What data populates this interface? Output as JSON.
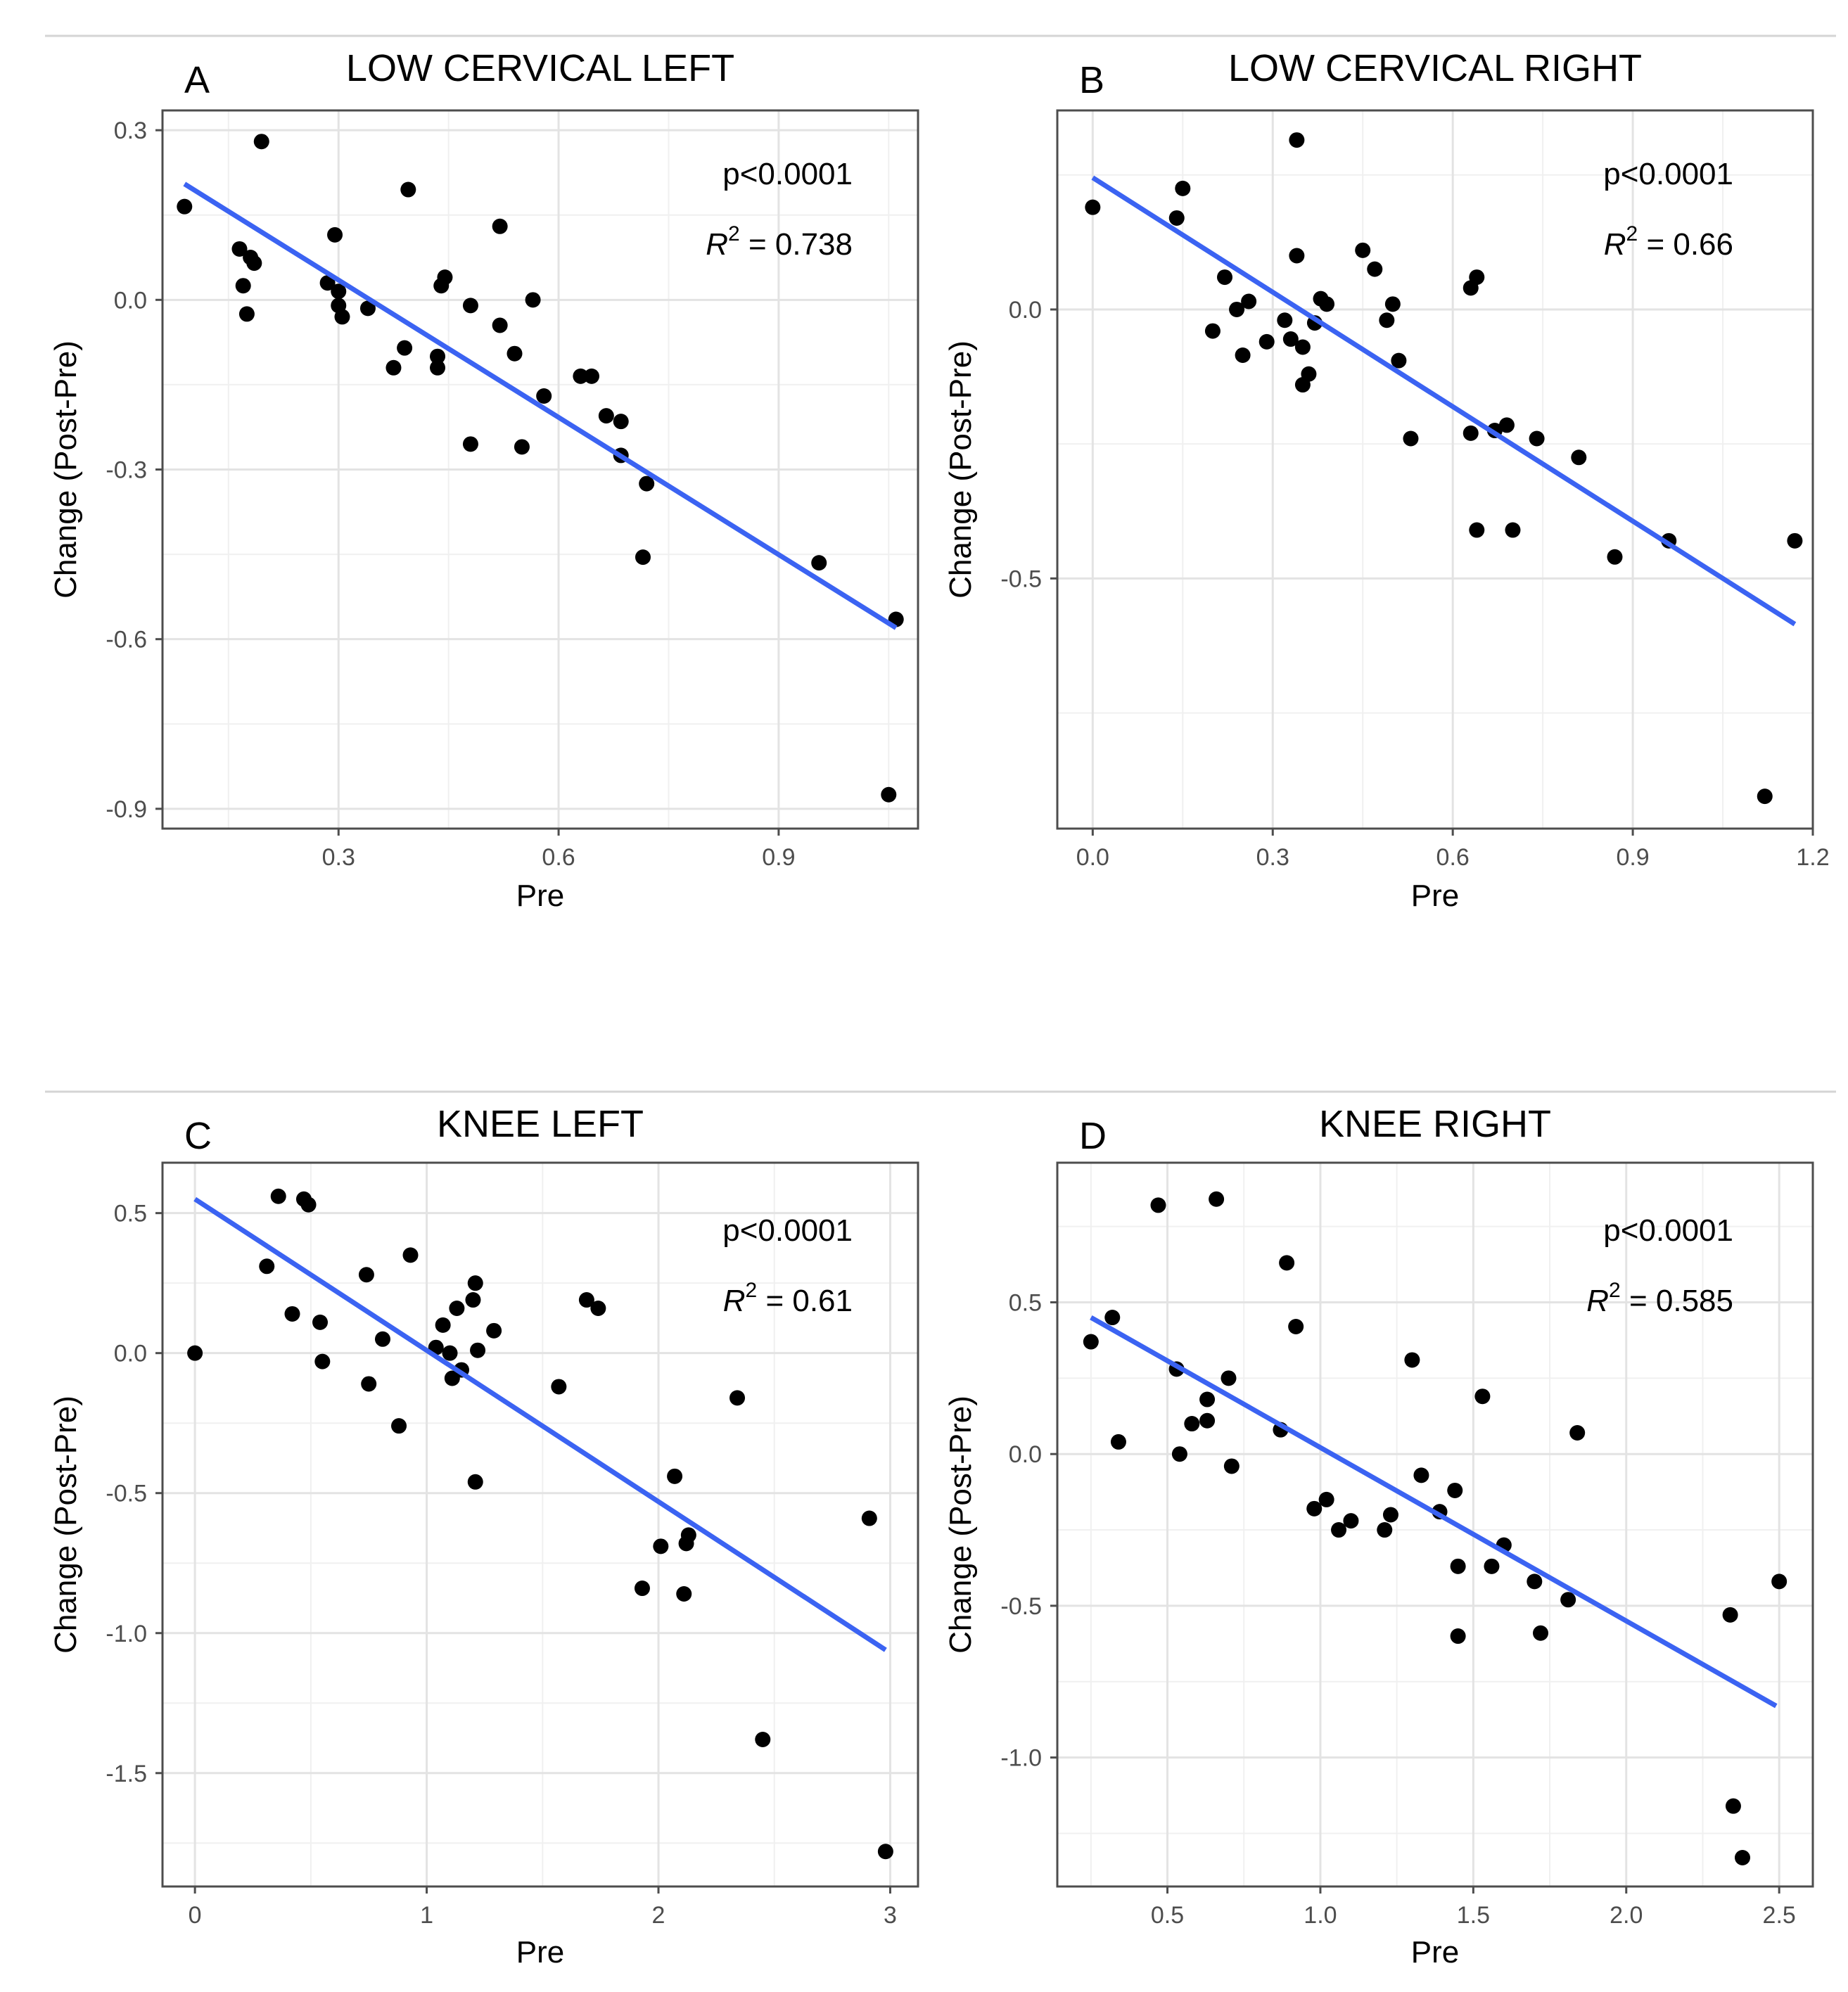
{
  "figure": {
    "type": "multi-panel scatter with fitted regression lines"
  },
  "chart_data": [
    {
      "type": "scatter",
      "panel_letter": "A",
      "title": "LOW CERVICAL LEFT",
      "xlabel": "Pre",
      "ylabel": "Change (Post-Pre)",
      "p_text": "p<0.0001",
      "r2_prefix": "R",
      "r2_sup": "2",
      "r2_value": " = 0.738",
      "xlim": [
        0.06,
        1.09
      ],
      "ylim": [
        -0.935,
        0.335
      ],
      "xticks": [
        0.3,
        0.6,
        0.9
      ],
      "yticks": [
        0.3,
        0.0,
        -0.3,
        -0.6,
        -0.9
      ],
      "xtick_labels": [
        "0.3",
        "0.6",
        "0.9"
      ],
      "ytick_labels": [
        "0.3",
        "0.0",
        "-0.3",
        "-0.6",
        "-0.9"
      ],
      "fit": {
        "x": [
          0.09,
          1.06
        ],
        "y": [
          0.205,
          -0.58
        ],
        "color": "#3b63f2"
      },
      "x": [
        0.09,
        0.165,
        0.17,
        0.175,
        0.18,
        0.185,
        0.195,
        0.285,
        0.295,
        0.3,
        0.3,
        0.305,
        0.34,
        0.375,
        0.39,
        0.395,
        0.435,
        0.435,
        0.44,
        0.445,
        0.48,
        0.48,
        0.52,
        0.52,
        0.54,
        0.55,
        0.565,
        0.58,
        0.63,
        0.645,
        0.665,
        0.685,
        0.685,
        0.715,
        0.72,
        0.955,
        1.05,
        1.06
      ],
      "y": [
        0.165,
        0.09,
        0.025,
        -0.025,
        0.075,
        0.065,
        0.28,
        0.03,
        0.115,
        -0.01,
        0.015,
        -0.03,
        -0.015,
        -0.12,
        -0.085,
        0.195,
        -0.1,
        -0.12,
        0.025,
        0.04,
        -0.01,
        -0.255,
        -0.045,
        0.13,
        -0.095,
        -0.26,
        0.0,
        -0.17,
        -0.135,
        -0.135,
        -0.205,
        -0.215,
        -0.275,
        -0.455,
        -0.325,
        -0.465,
        -0.875,
        -0.565
      ]
    },
    {
      "type": "scatter",
      "panel_letter": "B",
      "title": "LOW CERVICAL RIGHT",
      "xlabel": "Pre",
      "ylabel": "Change (Post-Pre)",
      "p_text": "p<0.0001",
      "r2_prefix": "R",
      "r2_sup": "2",
      "r2_value": " = 0.66",
      "xlim": [
        -0.059,
        1.2
      ],
      "ylim": [
        -0.965,
        0.37
      ],
      "xticks": [
        0.0,
        0.3,
        0.6,
        0.9,
        1.2
      ],
      "yticks": [
        0.0,
        -0.5
      ],
      "xtick_labels": [
        "0.0",
        "0.3",
        "0.6",
        "0.9",
        "1.2"
      ],
      "ytick_labels": [
        "0.0",
        "-0.5"
      ],
      "fit": {
        "x": [
          0.0,
          1.17
        ],
        "y": [
          0.245,
          -0.585
        ],
        "color": "#3b63f2"
      },
      "x": [
        0.0,
        0.14,
        0.15,
        0.22,
        0.2,
        0.24,
        0.25,
        0.26,
        0.29,
        0.32,
        0.33,
        0.34,
        0.34,
        0.35,
        0.35,
        0.36,
        0.37,
        0.38,
        0.39,
        0.45,
        0.47,
        0.49,
        0.5,
        0.51,
        0.53,
        0.63,
        0.63,
        0.64,
        0.64,
        0.67,
        0.69,
        0.7,
        0.74,
        0.81,
        0.87,
        0.96,
        1.12,
        1.17
      ],
      "y": [
        0.19,
        0.17,
        0.225,
        0.06,
        -0.04,
        0.0,
        -0.085,
        0.015,
        -0.06,
        -0.02,
        -0.055,
        0.1,
        0.315,
        -0.07,
        -0.14,
        -0.12,
        -0.025,
        0.02,
        0.01,
        0.11,
        0.075,
        -0.02,
        0.01,
        -0.095,
        -0.24,
        0.04,
        -0.23,
        -0.41,
        0.06,
        -0.225,
        -0.215,
        -0.41,
        -0.24,
        -0.275,
        -0.46,
        -0.43,
        -0.905,
        -0.43
      ]
    },
    {
      "type": "scatter",
      "panel_letter": "C",
      "title": "KNEE LEFT",
      "xlabel": "Pre",
      "ylabel": "Change (Post-Pre)",
      "p_text": "p<0.0001",
      "r2_prefix": "R",
      "r2_sup": "2",
      "r2_value": " = 0.61",
      "xlim": [
        -0.14,
        3.12
      ],
      "ylim": [
        -1.905,
        0.68
      ],
      "xticks": [
        0,
        1,
        2,
        3
      ],
      "yticks": [
        0.5,
        0.0,
        -0.5,
        -1.0,
        -1.5
      ],
      "xtick_labels": [
        "0",
        "1",
        "2",
        "3"
      ],
      "ytick_labels": [
        "0.5",
        "0.0",
        "-0.5",
        "-1.0",
        "-1.5"
      ],
      "fit": {
        "x": [
          0.0,
          2.98
        ],
        "y": [
          0.55,
          -1.06
        ],
        "color": "#3b63f2"
      },
      "x": [
        0.0,
        0.31,
        0.36,
        0.42,
        0.47,
        0.49,
        0.54,
        0.55,
        0.74,
        0.75,
        0.81,
        0.88,
        0.93,
        1.04,
        1.07,
        1.1,
        1.11,
        1.13,
        1.15,
        1.2,
        1.21,
        1.21,
        1.22,
        1.29,
        1.57,
        1.69,
        1.74,
        1.93,
        2.01,
        2.07,
        2.11,
        2.12,
        2.13,
        2.34,
        2.45,
        2.91,
        2.98
      ],
      "y": [
        0.0,
        0.31,
        0.56,
        0.14,
        0.55,
        0.53,
        0.11,
        -0.03,
        0.28,
        -0.11,
        0.05,
        -0.26,
        0.35,
        0.02,
        0.1,
        0.0,
        -0.09,
        0.16,
        -0.06,
        0.19,
        0.25,
        -0.46,
        0.01,
        0.08,
        -0.12,
        0.19,
        0.16,
        -0.84,
        -0.69,
        -0.44,
        -0.86,
        -0.68,
        -0.65,
        -0.16,
        -1.38,
        -0.59,
        -1.78
      ]
    },
    {
      "type": "scatter",
      "panel_letter": "D",
      "title": "KNEE RIGHT",
      "xlabel": "Pre",
      "ylabel": "Change (Post-Pre)",
      "p_text": "p<0.0001",
      "r2_prefix": "R",
      "r2_sup": "2",
      "r2_value": " = 0.585",
      "xlim": [
        0.14,
        2.61
      ],
      "ylim": [
        -1.425,
        0.96
      ],
      "xticks": [
        0.5,
        1.0,
        1.5,
        2.0,
        2.5
      ],
      "yticks": [
        0.5,
        0.0,
        -0.5,
        -1.0
      ],
      "xtick_labels": [
        "0.5",
        "1.0",
        "1.5",
        "2.0",
        "2.5"
      ],
      "ytick_labels": [
        "0.5",
        "0.0",
        "-0.5",
        "-1.0"
      ],
      "fit": {
        "x": [
          0.25,
          2.49
        ],
        "y": [
          0.45,
          -0.83
        ],
        "color": "#3b63f2"
      },
      "x": [
        0.25,
        0.32,
        0.34,
        0.47,
        0.53,
        0.54,
        0.58,
        0.63,
        0.63,
        0.66,
        0.7,
        0.71,
        0.87,
        0.89,
        0.92,
        0.98,
        1.02,
        1.06,
        1.1,
        1.21,
        1.23,
        1.3,
        1.33,
        1.39,
        1.44,
        1.45,
        1.45,
        1.53,
        1.56,
        1.6,
        1.7,
        1.72,
        1.81,
        1.84,
        2.34,
        2.35,
        2.38,
        2.5
      ],
      "y": [
        0.37,
        0.45,
        0.04,
        0.82,
        0.28,
        0.0,
        0.1,
        0.11,
        0.18,
        0.84,
        0.25,
        -0.04,
        0.08,
        0.63,
        0.42,
        -0.18,
        -0.15,
        -0.25,
        -0.22,
        -0.25,
        -0.2,
        0.31,
        -0.07,
        -0.19,
        -0.12,
        -0.37,
        -0.6,
        0.19,
        -0.37,
        -0.3,
        -0.42,
        -0.59,
        -0.48,
        0.07,
        -0.53,
        -1.16,
        -1.33,
        -0.42
      ]
    }
  ]
}
